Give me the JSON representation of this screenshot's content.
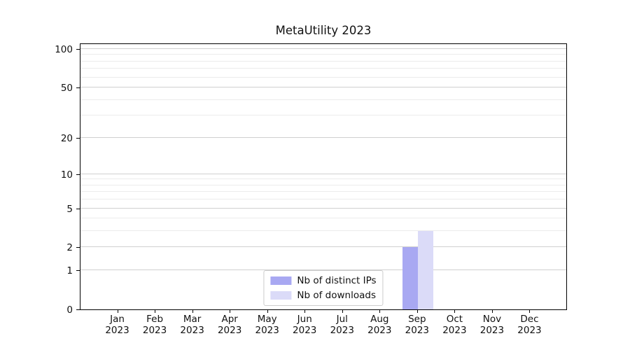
{
  "chart_data": {
    "type": "bar",
    "title": "MetaUtility 2023",
    "year_label": "2023",
    "months": [
      "Jan",
      "Feb",
      "Mar",
      "Apr",
      "May",
      "Jun",
      "Jul",
      "Aug",
      "Sep",
      "Oct",
      "Nov",
      "Dec"
    ],
    "series": [
      {
        "name": "Nb of distinct IPs",
        "color": "#a8a8f2",
        "values": [
          0,
          0,
          0,
          0,
          0,
          0,
          0,
          0,
          2,
          0,
          0,
          0
        ]
      },
      {
        "name": "Nb of downloads",
        "color": "#dbdbf8",
        "values": [
          0,
          0,
          0,
          0,
          0,
          0,
          0,
          0,
          3,
          0,
          0,
          0
        ]
      }
    ],
    "yticks": [
      0,
      1,
      2,
      5,
      10,
      20,
      50,
      100
    ],
    "minor_yticks": [
      3,
      4,
      6,
      7,
      8,
      9,
      30,
      40,
      60,
      70,
      80,
      90
    ],
    "ylim": [
      0,
      112
    ],
    "scale": "log1p",
    "grid": "horizontal",
    "legend_position": "lower-center-inside",
    "colors": {
      "grid_major": "#d0d0d0",
      "grid_minor": "#ececec",
      "spine": "#000000",
      "text": "#111111"
    }
  }
}
